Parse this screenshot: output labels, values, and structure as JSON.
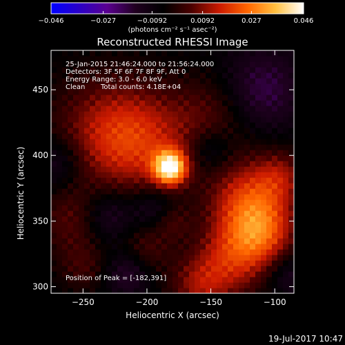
{
  "chart_data": {
    "type": "heatmap",
    "title": "Reconstructed RHESSI Image",
    "xlabel": "Heliocentric X (arcsec)",
    "ylabel": "Heliocentric Y (arcsec)",
    "xlim": [
      -275,
      -85
    ],
    "ylim": [
      295,
      480
    ],
    "x_ticks": [
      -250,
      -200,
      -150,
      -100
    ],
    "x_tick_labels": [
      "−250",
      "−200",
      "−150",
      "−100"
    ],
    "y_ticks": [
      300,
      350,
      400,
      450
    ],
    "y_tick_labels": [
      "300",
      "350",
      "400",
      "450"
    ],
    "colorbar": {
      "range": [
        -0.046,
        0.046
      ],
      "ticks": [
        -0.046,
        -0.027,
        -0.0092,
        0.0092,
        0.027,
        0.046
      ],
      "tick_labels": [
        "−0.046",
        "−0.027",
        "−0.0092",
        "0.0092",
        "0.027",
        "0.046"
      ],
      "label": "(photons cm⁻² s⁻¹ asec⁻²)",
      "colormap": [
        "#0000ff",
        "#2a00c8",
        "#5a0090",
        "#200020",
        "#000000",
        "#4a0000",
        "#cc1a00",
        "#ff6600",
        "#ffc040",
        "#ffffff"
      ]
    },
    "peak": {
      "x": -182,
      "y": 391
    },
    "sources": [
      {
        "x": -182,
        "y": 391,
        "sigma": 9,
        "amp": 0.046
      },
      {
        "x": -205,
        "y": 410,
        "sigma": 28,
        "amp": 0.018
      },
      {
        "x": -235,
        "y": 420,
        "sigma": 30,
        "amp": 0.013
      },
      {
        "x": -150,
        "y": 430,
        "sigma": 22,
        "amp": 0.01
      },
      {
        "x": -120,
        "y": 365,
        "sigma": 22,
        "amp": 0.024
      },
      {
        "x": -110,
        "y": 340,
        "sigma": 18,
        "amp": 0.02
      },
      {
        "x": -135,
        "y": 320,
        "sigma": 20,
        "amp": 0.018
      },
      {
        "x": -160,
        "y": 300,
        "sigma": 16,
        "amp": 0.014
      },
      {
        "x": -95,
        "y": 385,
        "sigma": 14,
        "amp": 0.012
      },
      {
        "x": -260,
        "y": 350,
        "sigma": 18,
        "amp": 0.01
      },
      {
        "x": -250,
        "y": 315,
        "sigma": 14,
        "amp": 0.008
      },
      {
        "x": -200,
        "y": 330,
        "sigma": 14,
        "amp": 0.009
      },
      {
        "x": -180,
        "y": 350,
        "sigma": 10,
        "amp": 0.008
      }
    ],
    "negative_sources": [
      {
        "x": -270,
        "y": 395,
        "sigma": 14,
        "amp": -0.01
      },
      {
        "x": -230,
        "y": 355,
        "sigma": 14,
        "amp": -0.011
      },
      {
        "x": -195,
        "y": 360,
        "sigma": 12,
        "amp": -0.01
      },
      {
        "x": -215,
        "y": 310,
        "sigma": 12,
        "amp": -0.011
      },
      {
        "x": -110,
        "y": 450,
        "sigma": 22,
        "amp": -0.013
      },
      {
        "x": -150,
        "y": 405,
        "sigma": 12,
        "amp": -0.01
      },
      {
        "x": -90,
        "y": 310,
        "sigma": 12,
        "amp": -0.009
      }
    ]
  },
  "annotations": {
    "time_range": "25-Jan-2015 21:46:24.000 to 21:56:24.000",
    "detectors": "Detectors: 3F 5F 6F 7F 8F 9F, Att 0",
    "energy": "Energy Range: 3.0 - 6.0 keV",
    "algorithm": "Clean",
    "total_counts": "Total counts: 4.18E+04",
    "peak_text": "Position of Peak = [-182,391]"
  },
  "footer": {
    "date": "19-Jul-2017 10:47"
  }
}
